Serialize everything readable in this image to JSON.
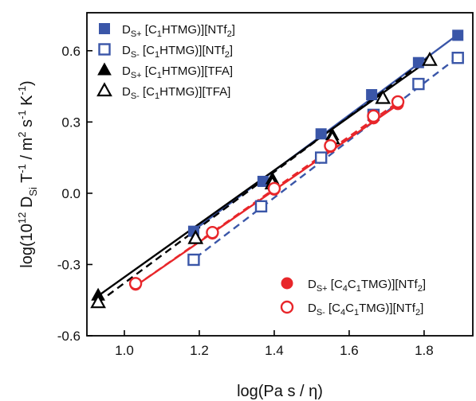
{
  "chart_data": {
    "type": "scatter",
    "xlabel": "log(Pa s / η)",
    "ylabel": "log(10¹² D_Si T⁻¹ / m² s⁻¹ K⁻¹)",
    "xlim": [
      0.9,
      1.93
    ],
    "ylim": [
      -0.6,
      0.76
    ],
    "xticks": [
      1.0,
      1.2,
      1.4,
      1.6,
      1.8
    ],
    "xtick_labels": [
      "1.0",
      "1.2",
      "1.4",
      "1.6",
      "1.8"
    ],
    "yticks": [
      -0.6,
      -0.3,
      0.0,
      0.3,
      0.6
    ],
    "ytick_labels": [
      "-0.6",
      "-0.3",
      "0.0",
      "0.3",
      "0.6"
    ],
    "grid": false,
    "series": [
      {
        "name": "DS+ [C1HTMG)][NTf2]",
        "label_parts": [
          [
            "D",
            ""
          ],
          [
            "S+",
            "sub"
          ],
          [
            " [C",
            ""
          ],
          [
            "1",
            "sub"
          ],
          [
            "HTMG)][NTf",
            ""
          ],
          [
            "2",
            "sub"
          ],
          [
            "]",
            ""
          ]
        ],
        "legend_group": "top-left",
        "color": "#3a56a8",
        "marker": "square",
        "filled": true,
        "x": [
          1.185,
          1.37,
          1.525,
          1.66,
          1.785,
          1.89
        ],
        "y": [
          -0.16,
          0.05,
          0.25,
          0.415,
          0.55,
          0.665
        ],
        "fit": {
          "x": [
            1.18,
            1.89
          ],
          "y": [
            -0.162,
            0.668
          ],
          "dash": false
        }
      },
      {
        "name": "DS- [C1HTMG)][NTf2]",
        "label_parts": [
          [
            "D",
            ""
          ],
          [
            "S-",
            "sub"
          ],
          [
            " [C",
            ""
          ],
          [
            "1",
            "sub"
          ],
          [
            "HTMG)][NTf",
            ""
          ],
          [
            "2",
            "sub"
          ],
          [
            "]",
            ""
          ]
        ],
        "legend_group": "top-left",
        "color": "#3a56a8",
        "marker": "square",
        "filled": false,
        "x": [
          1.185,
          1.365,
          1.525,
          1.665,
          1.785,
          1.89
        ],
        "y": [
          -0.28,
          -0.055,
          0.15,
          0.33,
          0.46,
          0.57
        ],
        "fit": {
          "x": [
            1.19,
            1.89
          ],
          "y": [
            -0.272,
            0.573
          ],
          "dash": true
        }
      },
      {
        "name": "DS+ [C1HTMG)][TFA]",
        "label_parts": [
          [
            "D",
            ""
          ],
          [
            "S+",
            "sub"
          ],
          [
            " [C",
            ""
          ],
          [
            "1",
            "sub"
          ],
          [
            "HTMG)][TFA]",
            ""
          ]
        ],
        "legend_group": "top-left",
        "color": "#000000",
        "marker": "triangle",
        "filled": true,
        "x": [
          0.93,
          1.19,
          1.395,
          1.555,
          1.69,
          1.815
        ],
        "y": [
          -0.43,
          -0.185,
          0.06,
          0.245,
          0.4,
          0.56
        ],
        "fit": {
          "x": [
            0.93,
            1.815
          ],
          "y": [
            -0.432,
            0.563
          ],
          "dash": false
        }
      },
      {
        "name": "DS- [C1HTMG)][TFA]",
        "label_parts": [
          [
            "D",
            ""
          ],
          [
            "S-",
            "sub"
          ],
          [
            " [C",
            ""
          ],
          [
            "1",
            "sub"
          ],
          [
            "HTMG)][TFA]",
            ""
          ]
        ],
        "legend_group": "top-left",
        "color": "#000000",
        "marker": "triangle",
        "filled": false,
        "x": [
          0.93,
          1.19,
          1.395,
          1.555,
          1.69,
          1.815
        ],
        "y": [
          -0.46,
          -0.19,
          0.04,
          0.23,
          0.4,
          0.56
        ],
        "fit": {
          "x": [
            0.93,
            1.815
          ],
          "y": [
            -0.46,
            0.575
          ],
          "dash": true
        }
      },
      {
        "name": "DS+ [C4C1TMG)][NTf2]",
        "label_parts": [
          [
            "D",
            ""
          ],
          [
            "S+",
            "sub"
          ],
          [
            " [C",
            ""
          ],
          [
            "4",
            "sub"
          ],
          [
            "C",
            ""
          ],
          [
            "1",
            "sub"
          ],
          [
            "TMG)][NTf",
            ""
          ],
          [
            "2",
            "sub"
          ],
          [
            "]",
            ""
          ]
        ],
        "legend_group": "bottom-right",
        "color": "#e8262a",
        "marker": "circle",
        "filled": true,
        "x": [
          1.03,
          1.235,
          1.4,
          1.55,
          1.665,
          1.73
        ],
        "y": [
          -0.385,
          -0.17,
          0.015,
          0.195,
          0.315,
          0.375
        ],
        "fit": {
          "x": [
            1.03,
            1.735
          ],
          "y": [
            -0.39,
            0.378
          ],
          "dash": false
        }
      },
      {
        "name": "DS- [C4C1TMG)][NTf2]",
        "label_parts": [
          [
            "D",
            ""
          ],
          [
            "S-",
            "sub"
          ],
          [
            " [C",
            ""
          ],
          [
            "4",
            "sub"
          ],
          [
            "C",
            ""
          ],
          [
            "1",
            "sub"
          ],
          [
            "TMG)][NTf",
            ""
          ],
          [
            "2",
            "sub"
          ],
          [
            "]",
            ""
          ]
        ],
        "legend_group": "bottom-right",
        "color": "#e8262a",
        "marker": "circle",
        "filled": false,
        "x": [
          1.03,
          1.235,
          1.4,
          1.55,
          1.665,
          1.73
        ],
        "y": [
          -0.38,
          -0.165,
          0.02,
          0.2,
          0.325,
          0.385
        ],
        "fit": {
          "x": [
            1.03,
            1.735
          ],
          "y": [
            -0.39,
            0.388
          ],
          "dash": true
        }
      }
    ]
  }
}
